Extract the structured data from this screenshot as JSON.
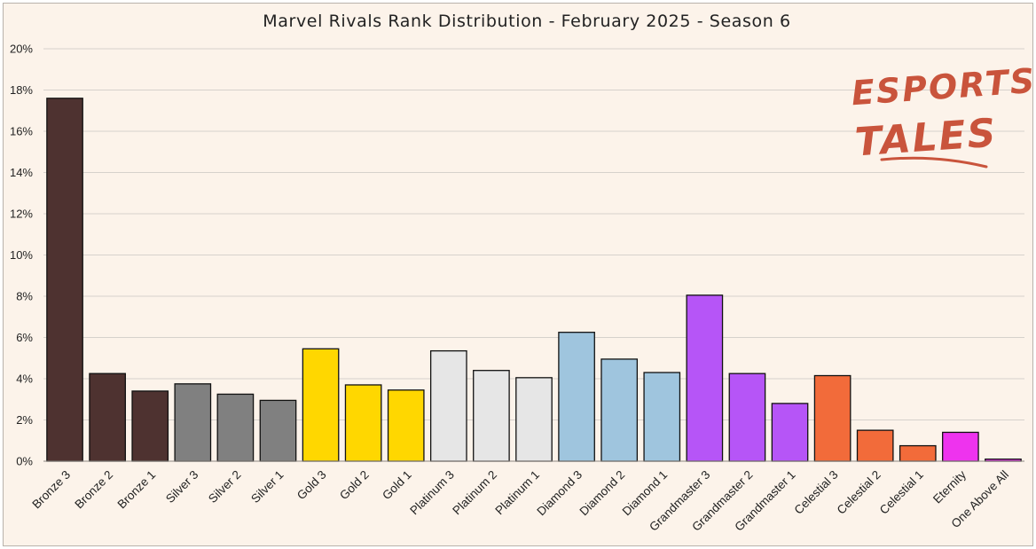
{
  "chart_data": {
    "type": "bar",
    "title": "Marvel Rivals Rank Distribution - February 2025 - Season 6",
    "xlabel": "",
    "ylabel": "",
    "ylim": [
      0,
      20
    ],
    "y_ticks": [
      "0%",
      "2%",
      "4%",
      "6%",
      "8%",
      "10%",
      "12%",
      "14%",
      "16%",
      "18%",
      "20%"
    ],
    "grid": "horizontal",
    "legend": "none",
    "categories": [
      "Bronze 3",
      "Bronze 2",
      "Bronze 1",
      "Silver 3",
      "Silver 2",
      "Silver 1",
      "Gold 3",
      "Gold 2",
      "Gold 1",
      "Platinum 3",
      "Platinum 2",
      "Platinum 1",
      "Diamond 3",
      "Diamond 2",
      "Diamond 1",
      "Grandmaster 3",
      "Grandmaster 2",
      "Grandmaster 1",
      "Celestial 3",
      "Celestial 2",
      "Celestial 1",
      "Eternity",
      "One Above All"
    ],
    "values": [
      17.6,
      4.25,
      3.4,
      3.75,
      3.25,
      2.95,
      5.45,
      3.7,
      3.45,
      5.35,
      4.4,
      4.05,
      6.25,
      4.95,
      4.3,
      8.05,
      4.25,
      2.8,
      4.15,
      1.5,
      0.75,
      1.4,
      0.1
    ],
    "colors": [
      "#4e3230",
      "#4e3230",
      "#4e3230",
      "#808080",
      "#808080",
      "#808080",
      "#ffd700",
      "#ffd700",
      "#ffd700",
      "#e6e6e6",
      "#e6e6e6",
      "#e6e6e6",
      "#9fc5de",
      "#9fc5de",
      "#9fc5de",
      "#b655f7",
      "#b655f7",
      "#b655f7",
      "#f26b3a",
      "#f26b3a",
      "#f26b3a",
      "#ee33ee",
      "#ee33ee"
    ]
  },
  "logo": {
    "line1": "ESPORTS",
    "line2": "TALES",
    "color": "#c9543c"
  },
  "style": {
    "background": "#fcf3ea",
    "grid_color": "#d6d1cc",
    "bar_outline": "#111111"
  }
}
